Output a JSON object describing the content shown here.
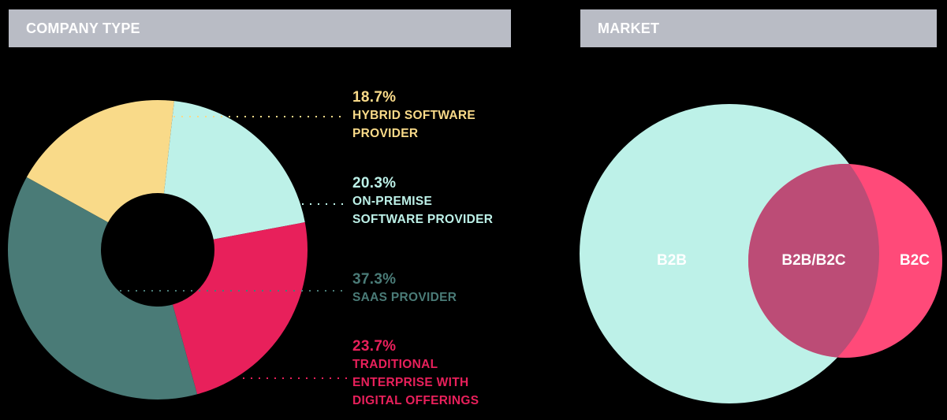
{
  "panels": {
    "company_type": {
      "title": "COMPANY TYPE"
    },
    "market": {
      "title": "MARKET"
    }
  },
  "legend": [
    {
      "pct": "18.7%",
      "label_lines": [
        "HYBRID SOFTWARE",
        "PROVIDER"
      ],
      "color": "#f9da89"
    },
    {
      "pct": "20.3%",
      "label_lines": [
        "ON-PREMISE",
        "SOFTWARE PROVIDER"
      ],
      "color": "#bdf1e8"
    },
    {
      "pct": "37.3%",
      "label_lines": [
        "SAAS PROVIDER"
      ],
      "color": "#4a7b77"
    },
    {
      "pct": "23.7%",
      "label_lines": [
        "TRADITIONAL",
        "ENTERPRISE WITH",
        "DIGITAL OFFERINGS"
      ],
      "color": "#e8205b"
    }
  ],
  "venn": {
    "b2b_label": "B2B",
    "overlap_label": "B2B/B2C",
    "b2c_label": "B2C",
    "b2b_color": "#bdf1e8",
    "b2c_color": "#ff4a79",
    "overlap_color": "#bc4c76"
  },
  "chart_data": [
    {
      "type": "pie",
      "title": "COMPANY TYPE",
      "donut": true,
      "categories": [
        "Hybrid Software Provider",
        "On-Premise Software Provider",
        "Traditional Enterprise with Digital Offerings",
        "SaaS Provider"
      ],
      "values": [
        18.7,
        20.3,
        23.7,
        37.3
      ],
      "colors": [
        "#f9da89",
        "#bdf1e8",
        "#e8205b",
        "#4a7b77"
      ],
      "legend_position": "right"
    },
    {
      "type": "venn",
      "title": "MARKET",
      "sets": [
        "B2B",
        "B2C"
      ],
      "regions": [
        "B2B",
        "B2B/B2C",
        "B2C"
      ],
      "colors": {
        "B2B": "#bdf1e8",
        "B2C": "#ff4a79",
        "B2B/B2C": "#bc4c76"
      }
    }
  ]
}
